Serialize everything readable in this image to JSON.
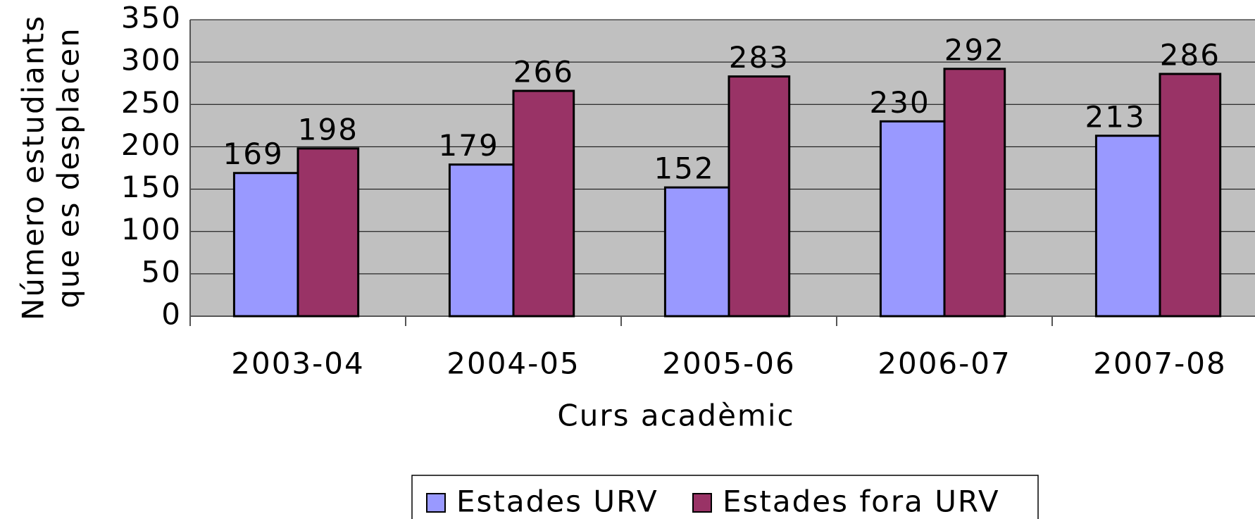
{
  "chart_data": {
    "type": "bar",
    "xlabel": "Curs acadèmic",
    "ylabel": [
      "Número estudiants",
      "que es desplacen"
    ],
    "categories": [
      "2003-04",
      "2004-05",
      "2005-06",
      "2006-07",
      "2007-08"
    ],
    "series": [
      {
        "name": "Estades URV",
        "color": "#9999ff",
        "values": [
          169,
          179,
          152,
          230,
          213
        ]
      },
      {
        "name": "Estades fora URV",
        "color": "#993366",
        "values": [
          198,
          266,
          283,
          292,
          286
        ]
      }
    ],
    "ylim": [
      0,
      350
    ],
    "yticks": [
      0,
      50,
      100,
      150,
      200,
      250,
      300,
      350
    ],
    "grid": true,
    "legend": "bottom"
  }
}
